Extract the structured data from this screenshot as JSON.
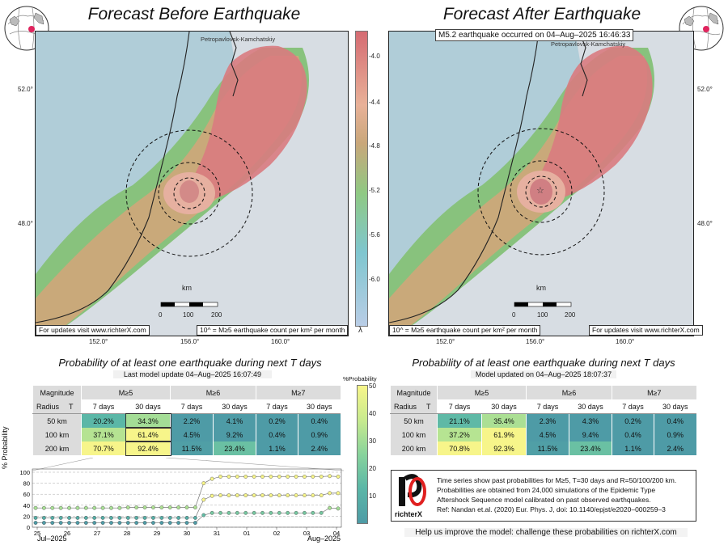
{
  "left_panel": {
    "title": "Forecast Before Earthquake",
    "city_label": "Petropavlovsk-Kamchatskiy",
    "footer_left": "For updates visit www.richterX.com",
    "footer_right": "10^ = M≥5 earthquake count per km² per month",
    "lat_labels": [
      "52.0°",
      "48.0°"
    ],
    "lon_labels": [
      "152.0°",
      "156.0°",
      "160.0°"
    ],
    "scale": {
      "unit": "km",
      "ticks": [
        "0",
        "100",
        "200"
      ]
    }
  },
  "right_panel": {
    "title": "Forecast After Earthquake",
    "event_label": "M5.2 earthquake occurred on 04–Aug–2025 16:46:33",
    "city_label": "Petropavlovsk-Kamchatskiy",
    "footer_left": "10^ = M≥5 earthquake count per km² per month",
    "footer_right": "For updates visit www.richterX.com",
    "lat_labels": [
      "52.0°",
      "48.0°"
    ],
    "lon_labels": [
      "152.0°",
      "156.0°",
      "160.0°"
    ],
    "scale": {
      "unit": "km",
      "ticks": [
        "0",
        "100",
        "200"
      ]
    }
  },
  "colorbar": {
    "ticks": [
      "-4.0",
      "-4.4",
      "-4.8",
      "-5.2",
      "-5.6",
      "-6.0"
    ],
    "symbol": "λ",
    "stops": [
      "#d56b72",
      "#e8b198",
      "#c9a77a",
      "#8fc983",
      "#7fc6cf",
      "#b9cde6"
    ]
  },
  "prob_colorbar": {
    "label": "%Probability",
    "ticks": [
      "50",
      "40",
      "30",
      "20",
      "10"
    ],
    "stops": [
      "#f7f58a",
      "#c8ea8e",
      "#88d39c",
      "#5ab6a7",
      "#4e9ba6"
    ]
  },
  "left_table": {
    "title": "Probability of at least one earthquake during next T days",
    "subtitle": "Last model update 04–Aug–2025 16:07:49",
    "mag_header": "Magnitude",
    "radius_header": "Radius",
    "t_header": "T",
    "magnitudes": [
      "M≥5",
      "M≥6",
      "M≥7"
    ],
    "periods": [
      "7 days",
      "30 days",
      "7 days",
      "30 days",
      "7 days",
      "30 days"
    ],
    "rows": [
      {
        "radius": "50 km",
        "cells": [
          "20.2%",
          "34.3%",
          "2.2%",
          "4.1%",
          "0.2%",
          "0.4%"
        ]
      },
      {
        "radius": "100 km",
        "cells": [
          "37.1%",
          "61.4%",
          "4.5%",
          "9.2%",
          "0.4%",
          "0.9%"
        ]
      },
      {
        "radius": "200 km",
        "cells": [
          "70.7%",
          "92.4%",
          "11.5%",
          "23.4%",
          "1.1%",
          "2.4%"
        ]
      }
    ]
  },
  "right_table": {
    "title": "Probability of at least one earthquake during next T days",
    "subtitle": "Model updated on 04–Aug–2025 18:07:37",
    "mag_header": "Magnitude",
    "radius_header": "Radius",
    "t_header": "T",
    "magnitudes": [
      "M≥5",
      "M≥6",
      "M≥7"
    ],
    "periods": [
      "7 days",
      "30 days",
      "7 days",
      "30 days",
      "7 days",
      "30 days"
    ],
    "rows": [
      {
        "radius": "50 km",
        "cells": [
          "21.1%",
          "35.4%",
          "2.3%",
          "4.3%",
          "0.2%",
          "0.4%"
        ]
      },
      {
        "radius": "100 km",
        "cells": [
          "37.2%",
          "61.9%",
          "4.5%",
          "9.4%",
          "0.4%",
          "0.9%"
        ]
      },
      {
        "radius": "200 km",
        "cells": [
          "70.8%",
          "92.3%",
          "11.5%",
          "23.4%",
          "1.1%",
          "2.4%"
        ]
      }
    ]
  },
  "timeseries": {
    "ylabel": "% Probability",
    "yticks": [
      "100",
      "80",
      "60",
      "40",
      "20",
      "0"
    ],
    "xticks": [
      "25",
      "26",
      "27",
      "28",
      "29",
      "30",
      "31",
      "01",
      "02",
      "03",
      "04"
    ],
    "month_left": "Jul–2025",
    "month_right": "Aug–2025",
    "series": [
      {
        "name": "200 km",
        "values": [
          35,
          35,
          35,
          35,
          35,
          35,
          35,
          35,
          35,
          35,
          35,
          36,
          36,
          36,
          36,
          36,
          36,
          36,
          36,
          36,
          80,
          88,
          92,
          92,
          92,
          92,
          92,
          92,
          92,
          92,
          92,
          92,
          92,
          92,
          92,
          93,
          92
        ]
      },
      {
        "name": "100 km",
        "values": [
          17,
          17,
          17,
          17,
          17,
          17,
          17,
          17,
          17,
          17,
          17,
          17,
          17,
          17,
          17,
          17,
          17,
          17,
          17,
          17,
          50,
          57,
          58,
          58,
          58,
          58,
          58,
          58,
          58,
          58,
          58,
          58,
          58,
          58,
          58,
          62,
          62
        ]
      },
      {
        "name": "50 km",
        "values": [
          8,
          8,
          8,
          8,
          8,
          8,
          8,
          8,
          8,
          8,
          8,
          8,
          8,
          8,
          8,
          8,
          8,
          8,
          8,
          8,
          22,
          26,
          26,
          26,
          26,
          26,
          26,
          26,
          26,
          26,
          26,
          26,
          26,
          26,
          26,
          35,
          34
        ]
      }
    ]
  },
  "info": {
    "logo_text": "richterX",
    "lines": [
      "Time series show past probabilities for M≥5, T=30 days and R=50/100/200 km.",
      "Probabilities are obtained from 24,000 simulations of the Epidemic Type",
      "Aftershock Sequence model calibrated on past observed earthquakes.",
      "Ref: Nandan et.al. (2020) Eur. Phys. J, doi: 10.1140/epjst/e2020–000259–3"
    ]
  },
  "help_text": "Help us improve the model: challenge these probabilities on richterX.com"
}
